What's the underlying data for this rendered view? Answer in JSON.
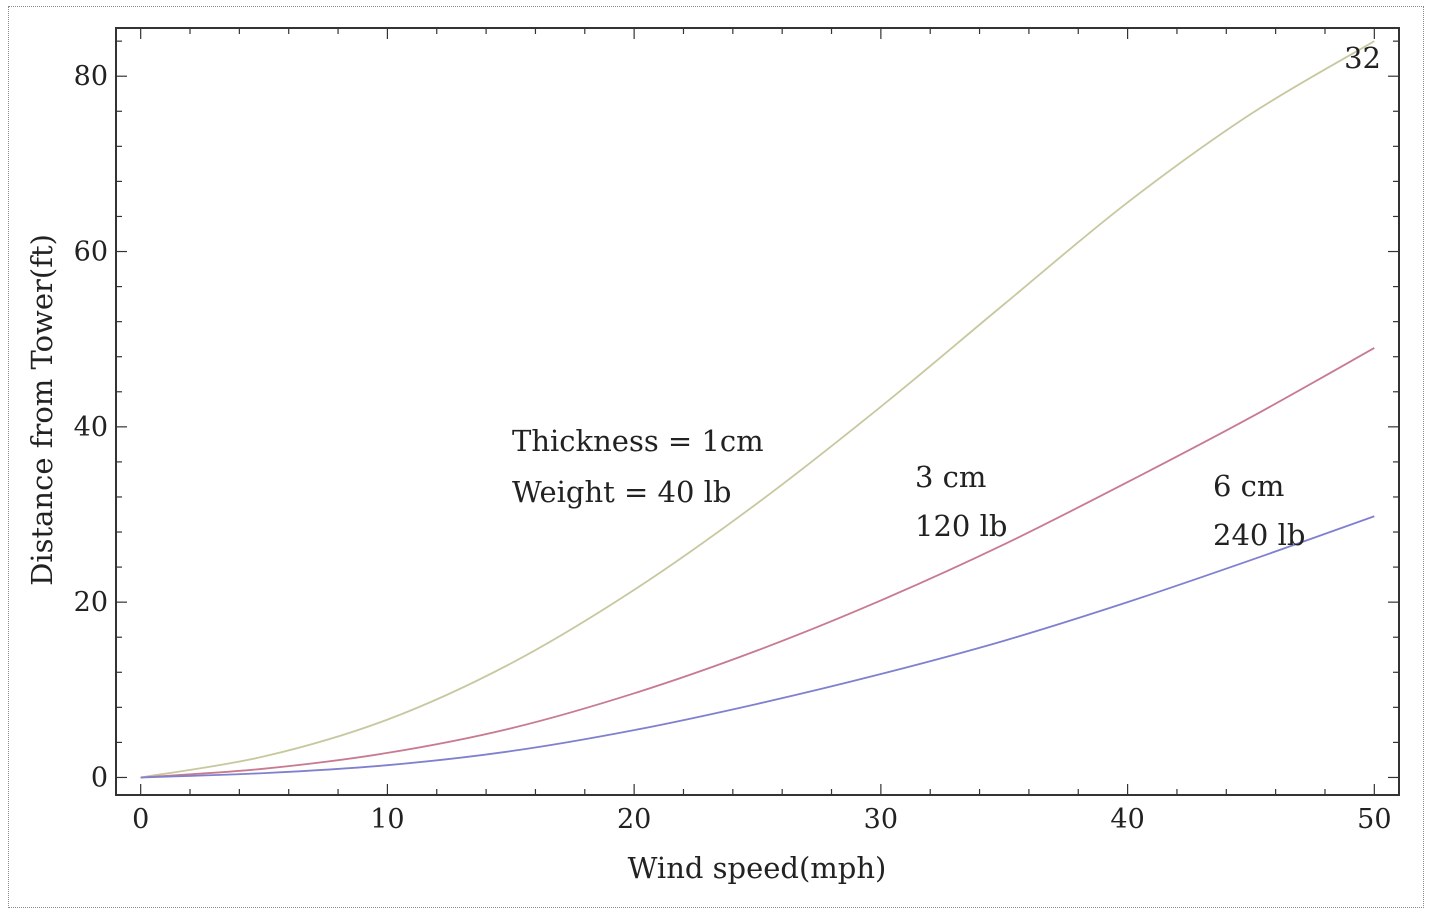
{
  "page_number": "32",
  "chart_data": {
    "type": "line",
    "title": "",
    "xlabel": "Wind speed(mph)",
    "ylabel": "Distance from Tower(ft)",
    "xlim": [
      -1,
      51
    ],
    "ylim": [
      -2,
      85.5
    ],
    "x_ticks": [
      0,
      10,
      20,
      30,
      40,
      50
    ],
    "y_ticks": [
      0,
      20,
      40,
      60,
      80
    ],
    "grid": false,
    "x": [
      0,
      5,
      10,
      15,
      20,
      25,
      30,
      35,
      40,
      45,
      50
    ],
    "series": [
      {
        "color": "#c8c8a0",
        "values": [
          0,
          2.4,
          6.6,
          13.0,
          21.4,
          31.3,
          42.3,
          54.0,
          65.6,
          75.7,
          84.0
        ]
      },
      {
        "color": "#c87a90",
        "values": [
          0,
          1.0,
          2.8,
          5.6,
          9.6,
          14.5,
          20.2,
          26.6,
          33.7,
          41.1,
          49.0
        ]
      },
      {
        "color": "#8080d0",
        "values": [
          0,
          0.5,
          1.4,
          3.0,
          5.4,
          8.4,
          11.8,
          15.6,
          20.0,
          24.8,
          29.8
        ]
      }
    ],
    "annotations": [
      {
        "lines": [
          "Thickness = 1cm",
          "Weight = 40 lb"
        ]
      },
      {
        "lines": [
          "3 cm",
          "120 lb"
        ]
      },
      {
        "lines": [
          "6 cm",
          "240 lb"
        ]
      }
    ]
  }
}
